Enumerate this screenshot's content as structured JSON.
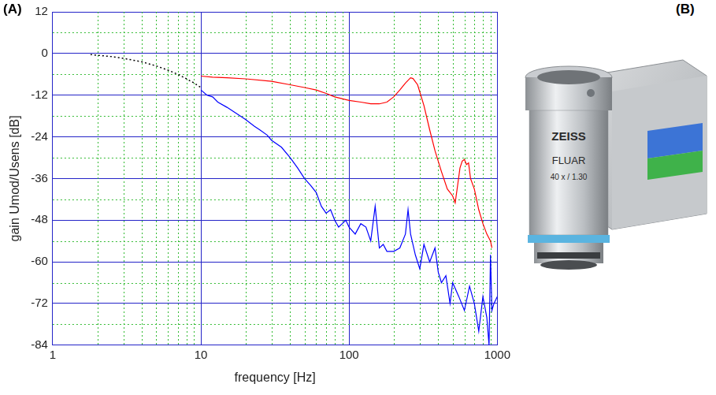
{
  "chart_data": {
    "type": "line",
    "x_label": "frequency [Hz]",
    "y_label": "gain Umod/Usens [dB]",
    "log": "x",
    "grid": true,
    "xlim": [
      1,
      1000
    ],
    "ylim": [
      -84,
      12
    ],
    "xticks": [
      1,
      10,
      100,
      1000
    ],
    "yticks": [
      -84,
      -72,
      -60,
      -48,
      -36,
      -24,
      -12,
      0,
      12
    ],
    "series": [
      {
        "color": "#000000",
        "line_style": "dotted",
        "x": [
          1.8,
          2,
          2.5,
          3,
          4,
          5,
          6,
          7,
          8,
          9,
          10
        ],
        "values": [
          -0.3,
          -0.5,
          -0.9,
          -1.4,
          -2.4,
          -3.6,
          -4.8,
          -6.0,
          -7.3,
          -8.5,
          -9.8
        ]
      },
      {
        "color": "#ff0000",
        "line_style": "solid",
        "x": [
          10,
          12,
          15,
          20,
          30,
          40,
          50,
          60,
          70,
          80,
          100,
          120,
          140,
          160,
          180,
          200,
          220,
          240,
          260,
          270,
          290,
          320,
          350,
          380,
          420,
          460,
          500,
          520,
          540,
          560,
          580,
          600,
          620,
          640,
          660,
          700,
          750,
          800,
          850,
          900,
          920
        ],
        "values": [
          -6.5,
          -6.8,
          -7,
          -7.3,
          -8,
          -9,
          -9.8,
          -10.5,
          -11.5,
          -12.5,
          -13.5,
          -14,
          -14.5,
          -14.5,
          -14,
          -12.5,
          -10.5,
          -8.5,
          -7,
          -7.2,
          -9,
          -15,
          -22,
          -28,
          -34,
          -39,
          -41,
          -43,
          -38,
          -33,
          -31,
          -30.5,
          -32,
          -31.5,
          -36,
          -39,
          -45,
          -49,
          -52,
          -54,
          -56
        ]
      },
      {
        "color": "#0000ff",
        "line_style": "solid",
        "x": [
          10,
          11,
          12,
          13,
          15,
          17,
          20,
          23,
          25,
          28,
          30,
          35,
          40,
          45,
          50,
          55,
          60,
          65,
          70,
          75,
          80,
          85,
          90,
          95,
          100,
          110,
          120,
          130,
          140,
          150,
          160,
          170,
          180,
          200,
          220,
          240,
          250,
          260,
          280,
          300,
          320,
          350,
          380,
          400,
          420,
          450,
          480,
          500,
          550,
          600,
          650,
          700,
          750,
          800,
          850,
          880,
          900,
          920,
          950,
          1000
        ],
        "values": [
          -10.5,
          -12,
          -12.5,
          -14,
          -15.5,
          -17,
          -19,
          -21,
          -22,
          -23.5,
          -25,
          -27,
          -30,
          -33,
          -36,
          -38,
          -40,
          -44,
          -46,
          -45,
          -48,
          -50,
          -49,
          -48,
          -50,
          -52,
          -49,
          -50,
          -54,
          -44,
          -56,
          -55,
          -57,
          -57,
          -56,
          -52,
          -45,
          -52,
          -58,
          -62,
          -55,
          -60,
          -56,
          -63,
          -66,
          -64,
          -72,
          -66,
          -70,
          -74,
          -67,
          -72,
          -80,
          -70,
          -76,
          -84,
          -58,
          -74,
          -72,
          -70
        ]
      }
    ]
  },
  "panel_labels": [
    "(A)",
    "(B)"
  ],
  "photo": {
    "texts": [
      "ZEISS",
      "FLUAR",
      "40 x / 1.30"
    ]
  }
}
